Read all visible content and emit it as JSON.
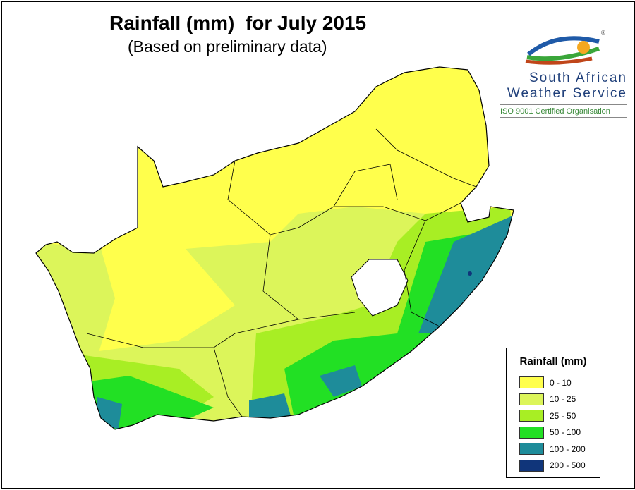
{
  "title": "Rainfall (mm)  for July 2015",
  "subtitle": "(Based on preliminary data)",
  "logo": {
    "name_line1": "South African",
    "name_line2": "Weather Service",
    "tagline": "ISO 9001 Certified Organisation",
    "registered": "®"
  },
  "legend": {
    "title": "Rainfall (mm)",
    "items": [
      {
        "label": "0 - 10",
        "color": "#ffff4c"
      },
      {
        "label": "10 - 25",
        "color": "#dcf55a"
      },
      {
        "label": "25 - 50",
        "color": "#a8ee24"
      },
      {
        "label": "50 - 100",
        "color": "#22e024"
      },
      {
        "label": "100 - 200",
        "color": "#1e8c9a"
      },
      {
        "label": "200 - 500",
        "color": "#10357a"
      }
    ]
  }
}
